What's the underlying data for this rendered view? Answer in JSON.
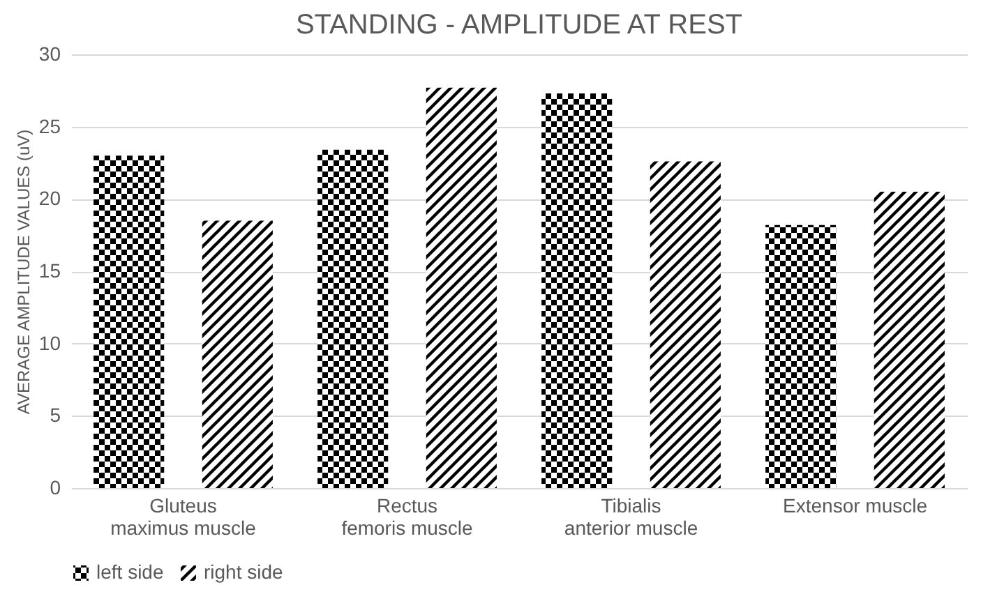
{
  "chart_data": {
    "type": "bar",
    "title": "STANDING - AMPLITUDE AT REST",
    "ylabel": "AVERAGE AMPLITUDE VALUES (uV)",
    "categories": [
      "Gluteus maximus muscle",
      "Rectus femoris muscle",
      "Tibialis anterior muscle",
      "Extensor muscle"
    ],
    "series": [
      {
        "name": "left side",
        "color": "#000000",
        "values": [
          23.0,
          23.4,
          27.3,
          18.2
        ]
      },
      {
        "name": "right side",
        "color": "#000000",
        "values": [
          18.5,
          27.7,
          22.6,
          20.5
        ]
      }
    ],
    "ylim": [
      0,
      30
    ],
    "yticks": [
      0,
      5,
      10,
      15,
      20,
      25,
      30
    ],
    "grid": "y",
    "legend": "bottom"
  }
}
